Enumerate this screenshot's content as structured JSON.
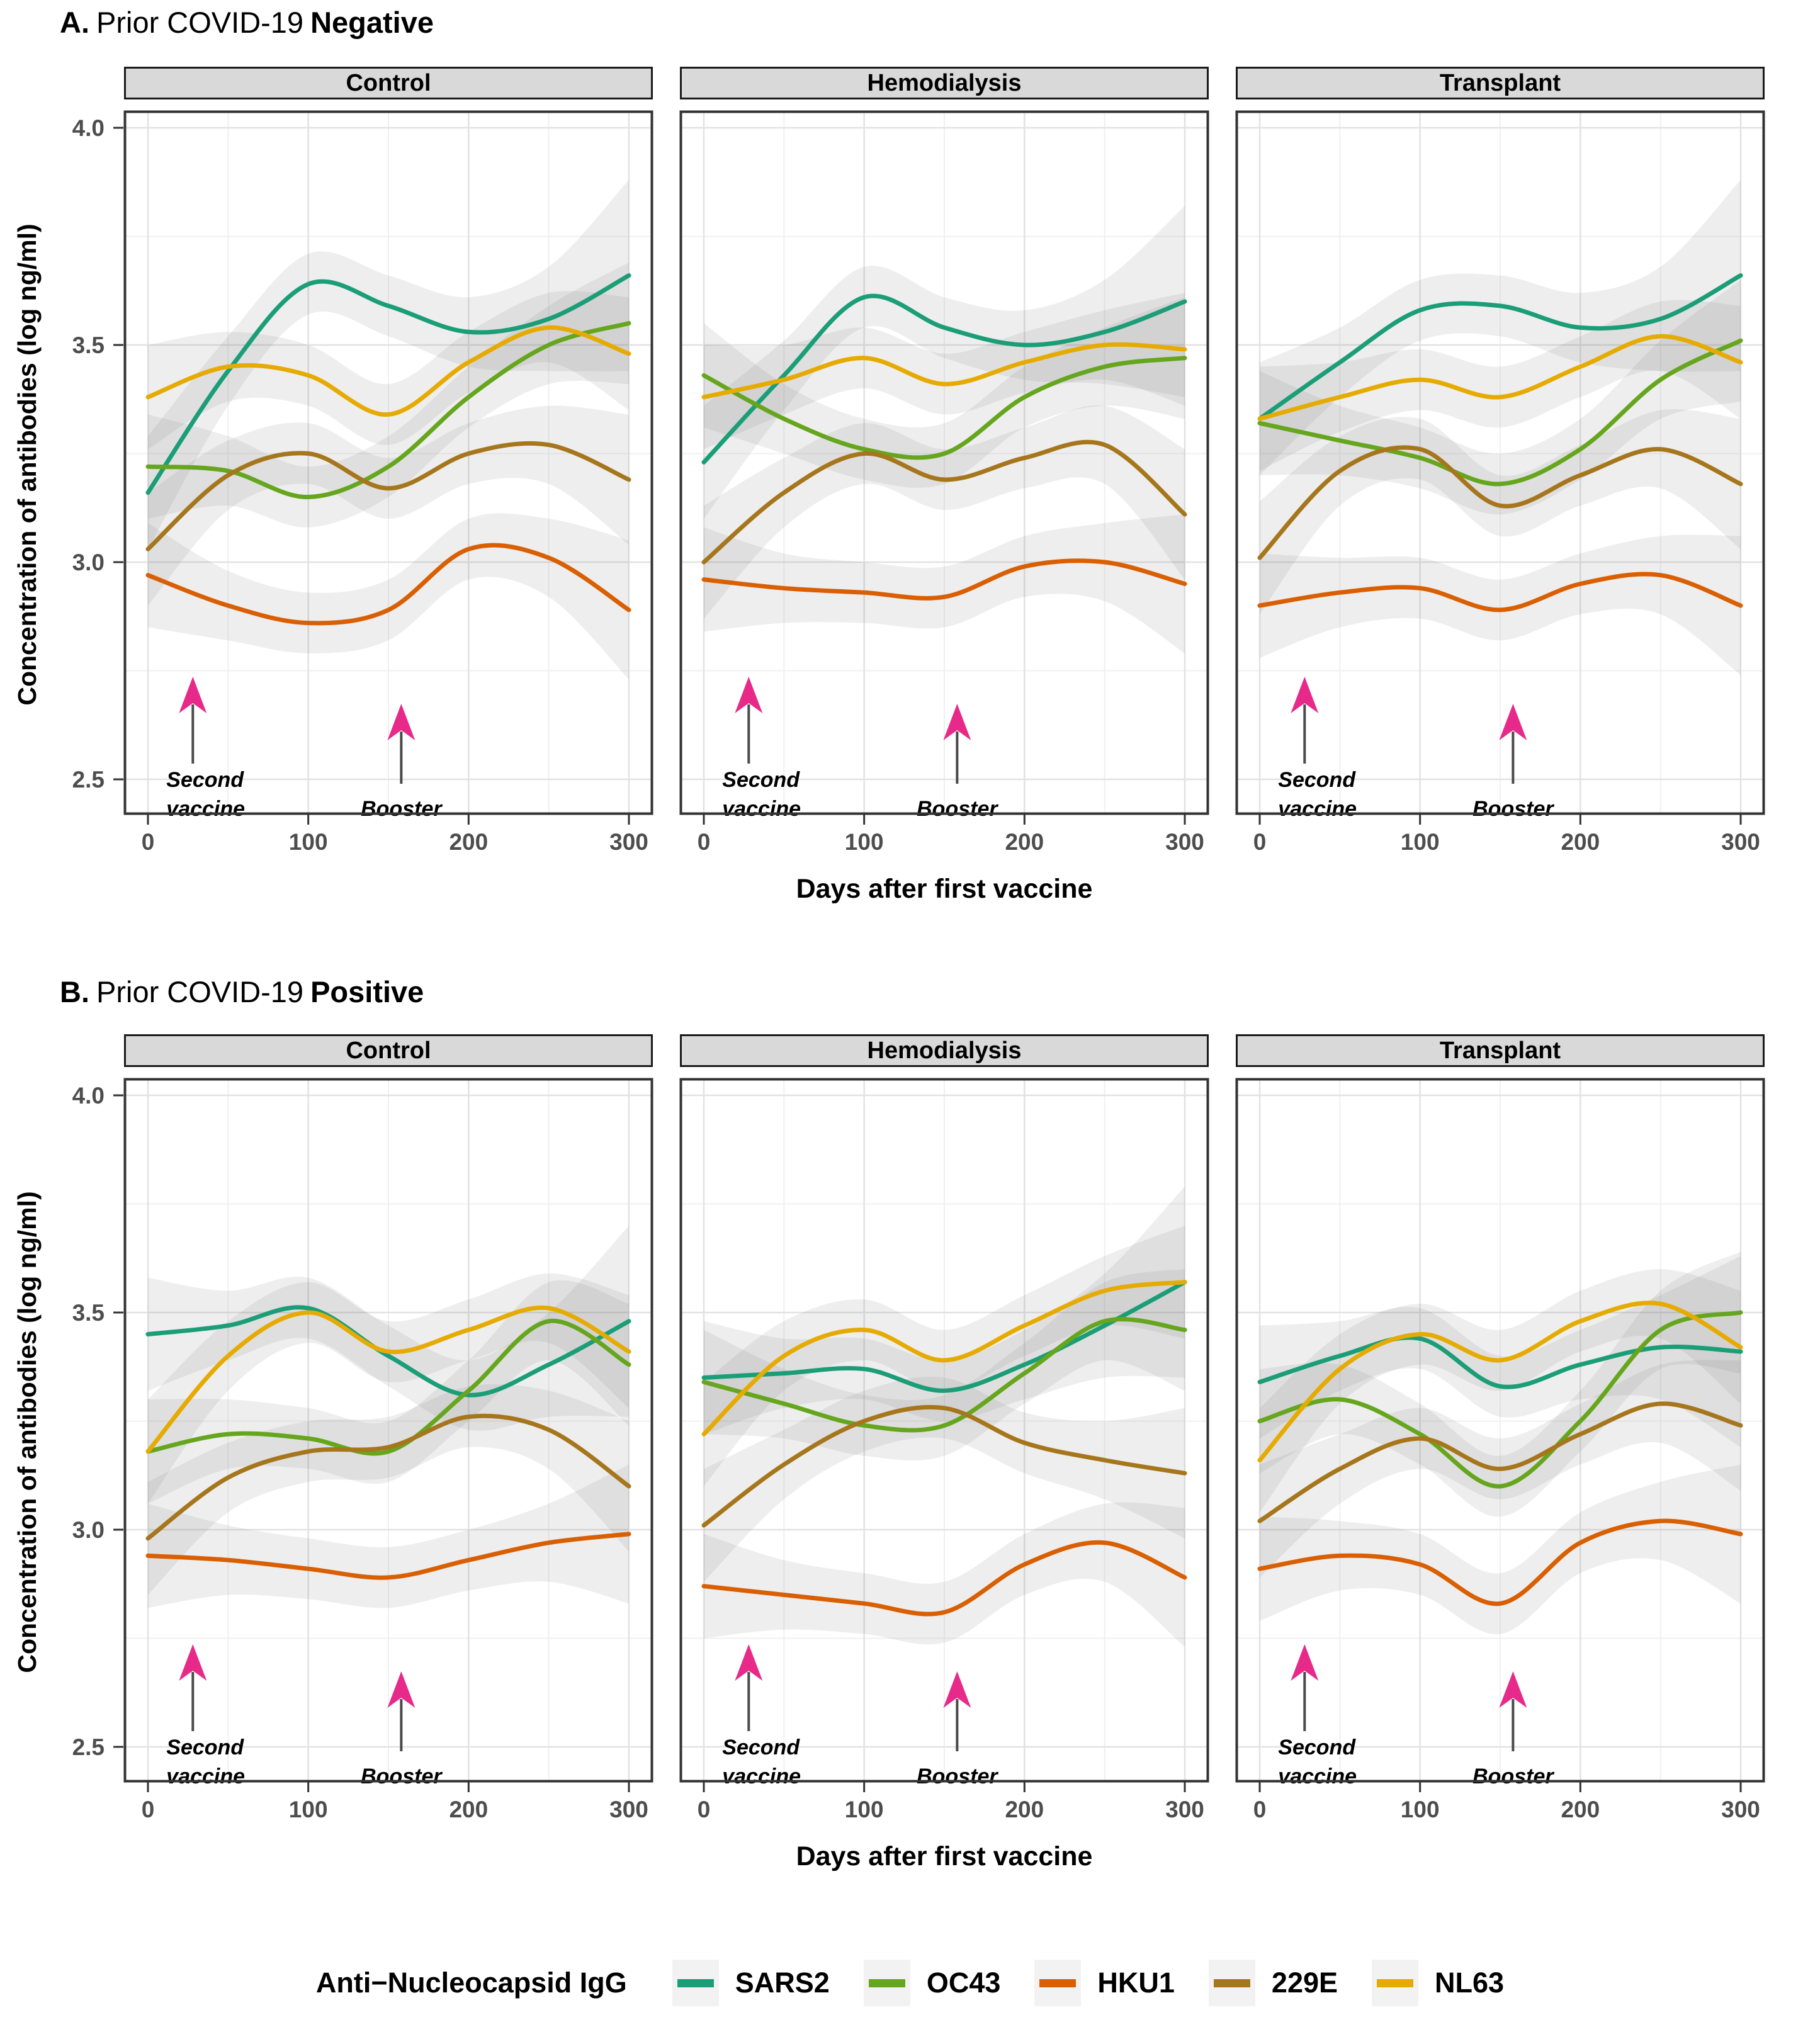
{
  "chart_data": {
    "type": "line",
    "x": [
      0,
      50,
      100,
      150,
      200,
      250,
      300
    ],
    "x_ticks": [
      "0",
      "100",
      "200",
      "300"
    ],
    "x_tick_values": [
      0,
      100,
      200,
      300
    ],
    "y_ticks": [
      "4.0",
      "3.5",
      "3.0",
      "2.5"
    ],
    "y_tick_values": [
      4.0,
      3.5,
      3.0,
      2.5
    ],
    "xlim": [
      0,
      300
    ],
    "ylim": [
      2.46,
      4.04
    ],
    "grid": "on",
    "xlabel": "Days after first vaccine",
    "ylabel": "Concentration of antibodies (log ng/ml)",
    "facet_labels": [
      "Control",
      "Hemodialysis",
      "Transplant"
    ],
    "series": [
      {
        "name": "SARS2",
        "color": "#1B9E77"
      },
      {
        "name": "OC43",
        "color": "#66A61E"
      },
      {
        "name": "HKU1",
        "color": "#D95F02"
      },
      {
        "name": "229E",
        "color": "#A6761D"
      },
      {
        "name": "NL63",
        "color": "#E6AB02"
      }
    ],
    "band_halfwidth": {
      "SARS2": [
        0.13,
        0.08,
        0.07,
        0.07,
        0.08,
        0.12,
        0.22
      ],
      "OC43": [
        0.12,
        0.08,
        0.07,
        0.07,
        0.07,
        0.09,
        0.14
      ],
      "HKU1": [
        0.12,
        0.08,
        0.07,
        0.07,
        0.07,
        0.09,
        0.16
      ],
      "229E": [
        0.13,
        0.08,
        0.07,
        0.07,
        0.07,
        0.09,
        0.15
      ],
      "NL63": [
        0.12,
        0.08,
        0.07,
        0.07,
        0.07,
        0.08,
        0.13
      ]
    },
    "panels": [
      {
        "id": "A",
        "title_prefix": "A.",
        "title_mid": "Prior COVID-19",
        "title_emphasis": "Negative",
        "facets": [
          {
            "series": {
              "SARS2": [
                3.16,
                3.44,
                3.64,
                3.59,
                3.53,
                3.56,
                3.66
              ],
              "OC43": [
                3.22,
                3.21,
                3.15,
                3.22,
                3.38,
                3.5,
                3.55
              ],
              "HKU1": [
                2.97,
                2.9,
                2.86,
                2.89,
                3.03,
                3.01,
                2.89
              ],
              "229E": [
                3.03,
                3.2,
                3.25,
                3.17,
                3.25,
                3.27,
                3.19
              ],
              "NL63": [
                3.38,
                3.45,
                3.43,
                3.34,
                3.46,
                3.54,
                3.48
              ]
            }
          },
          {
            "series": {
              "SARS2": [
                3.23,
                3.43,
                3.61,
                3.54,
                3.5,
                3.53,
                3.6
              ],
              "OC43": [
                3.43,
                3.33,
                3.26,
                3.25,
                3.38,
                3.45,
                3.47
              ],
              "HKU1": [
                2.96,
                2.94,
                2.93,
                2.92,
                2.99,
                3.0,
                2.95
              ],
              "229E": [
                3.0,
                3.16,
                3.25,
                3.19,
                3.24,
                3.27,
                3.11
              ],
              "NL63": [
                3.38,
                3.42,
                3.47,
                3.41,
                3.46,
                3.5,
                3.49
              ]
            }
          },
          {
            "series": {
              "SARS2": [
                3.33,
                3.46,
                3.58,
                3.59,
                3.54,
                3.56,
                3.66
              ],
              "OC43": [
                3.32,
                3.28,
                3.24,
                3.18,
                3.26,
                3.42,
                3.51
              ],
              "HKU1": [
                2.9,
                2.93,
                2.94,
                2.89,
                2.95,
                2.97,
                2.9
              ],
              "229E": [
                3.01,
                3.21,
                3.26,
                3.13,
                3.2,
                3.26,
                3.18
              ],
              "NL63": [
                3.33,
                3.38,
                3.42,
                3.38,
                3.45,
                3.52,
                3.46
              ]
            }
          }
        ]
      },
      {
        "id": "B",
        "title_prefix": "B.",
        "title_mid": "Prior COVID-19",
        "title_emphasis": "Positive",
        "facets": [
          {
            "series": {
              "SARS2": [
                3.45,
                3.47,
                3.51,
                3.4,
                3.31,
                3.38,
                3.48
              ],
              "OC43": [
                3.18,
                3.22,
                3.21,
                3.18,
                3.32,
                3.48,
                3.38
              ],
              "HKU1": [
                2.94,
                2.93,
                2.91,
                2.89,
                2.93,
                2.97,
                2.99
              ],
              "229E": [
                2.98,
                3.12,
                3.18,
                3.19,
                3.26,
                3.23,
                3.1
              ],
              "NL63": [
                3.18,
                3.4,
                3.5,
                3.41,
                3.46,
                3.51,
                3.41
              ]
            }
          },
          {
            "series": {
              "SARS2": [
                3.35,
                3.36,
                3.37,
                3.32,
                3.38,
                3.47,
                3.57
              ],
              "OC43": [
                3.34,
                3.29,
                3.24,
                3.24,
                3.36,
                3.48,
                3.46
              ],
              "HKU1": [
                2.87,
                2.85,
                2.83,
                2.81,
                2.92,
                2.97,
                2.89
              ],
              "229E": [
                3.01,
                3.15,
                3.25,
                3.28,
                3.2,
                3.16,
                3.13
              ],
              "NL63": [
                3.22,
                3.4,
                3.46,
                3.39,
                3.47,
                3.55,
                3.57
              ]
            }
          },
          {
            "series": {
              "SARS2": [
                3.34,
                3.4,
                3.44,
                3.33,
                3.38,
                3.42,
                3.41
              ],
              "OC43": [
                3.25,
                3.3,
                3.22,
                3.1,
                3.25,
                3.46,
                3.5
              ],
              "HKU1": [
                2.91,
                2.94,
                2.92,
                2.83,
                2.97,
                3.02,
                2.99
              ],
              "229E": [
                3.02,
                3.14,
                3.21,
                3.14,
                3.22,
                3.29,
                3.24
              ],
              "NL63": [
                3.16,
                3.37,
                3.45,
                3.39,
                3.48,
                3.52,
                3.42
              ]
            }
          }
        ]
      }
    ]
  },
  "annotations": {
    "second_vaccine": {
      "x_days": 28,
      "line1": "Second",
      "line2": "vaccine"
    },
    "booster": {
      "x_days": 158,
      "label": "Booster"
    },
    "arrow_color": "#E7298A",
    "stem_color": "#4a4a4a"
  },
  "legend": {
    "title": "Anti−Nucleocapsid IgG"
  },
  "theme": {
    "panel_border": "#333333",
    "grid_major": "#e2e2e2",
    "grid_minor": "#f0f0f0",
    "tick_text": "#4d4d4d",
    "strip_bg": "#d9d9d9",
    "band_fill": "rgba(120,120,120,0.13)"
  }
}
